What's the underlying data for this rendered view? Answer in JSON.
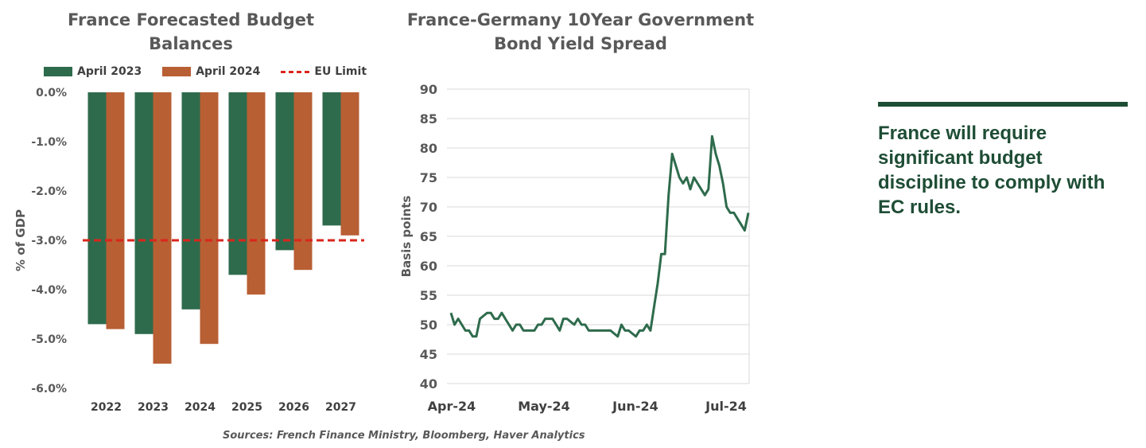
{
  "chart_data": [
    {
      "type": "bar",
      "title": "France Forecasted Budget Balances",
      "ylabel": "% of GDP",
      "xlabel": "",
      "categories": [
        "2022",
        "2023",
        "2024",
        "2025",
        "2026",
        "2027"
      ],
      "series": [
        {
          "name": "April 2023",
          "values": [
            -4.7,
            -4.9,
            -4.4,
            -3.7,
            -3.2,
            -2.7
          ],
          "color": "#2e6b4c"
        },
        {
          "name": "April 2024",
          "values": [
            -4.8,
            -5.5,
            -5.1,
            -4.1,
            -3.6,
            -2.9
          ],
          "color": "#b85f34"
        }
      ],
      "reference_line": {
        "name": "EU Limit",
        "value": -3.0,
        "color": "#d9261c"
      },
      "ylim": [
        -6.0,
        0.0
      ],
      "yticks": [
        0.0,
        -1.0,
        -2.0,
        -3.0,
        -4.0,
        -5.0,
        -6.0
      ],
      "ytick_labels": [
        "0.0%",
        "-1.0%",
        "-2.0%",
        "-3.0%",
        "-4.0%",
        "-5.0%",
        "-6.0%"
      ],
      "legend": "top",
      "grid": false
    },
    {
      "type": "line",
      "title": "France-Germany 10Year Government Bond Yield Spread",
      "ylabel": "Basis points",
      "xlabel": "",
      "ylim": [
        40,
        90
      ],
      "yticks": [
        40,
        45,
        50,
        55,
        60,
        65,
        70,
        75,
        80,
        85,
        90
      ],
      "xtick_labels": [
        "Apr-24",
        "May-24",
        "Jun-24",
        "Jul-24"
      ],
      "grid": true,
      "color": "#2e6b4c",
      "series": [
        {
          "values": [
            52,
            50,
            51,
            50,
            49,
            49,
            48,
            48,
            51,
            51.5,
            52,
            52,
            51,
            51,
            52,
            51,
            50,
            49,
            50,
            50,
            49,
            49,
            49,
            49,
            50,
            50,
            51,
            51,
            51,
            50,
            49,
            51,
            51,
            50.5,
            50,
            51,
            50,
            50,
            49,
            49,
            49,
            49,
            49,
            49,
            49,
            48.5,
            48,
            50,
            49,
            49,
            48.5,
            48,
            49,
            49,
            50,
            49,
            53,
            57,
            62,
            62,
            72,
            79,
            77,
            75,
            74,
            75,
            73,
            75,
            74,
            73,
            72,
            73,
            82,
            79,
            77,
            74,
            70,
            69,
            69,
            68,
            67,
            66,
            69
          ]
        }
      ]
    }
  ],
  "message": {
    "text": "France will require significant budget discipline to comply with EC rules."
  },
  "source": "Sources: French Finance Ministry, Bloomberg, Haver Analytics"
}
